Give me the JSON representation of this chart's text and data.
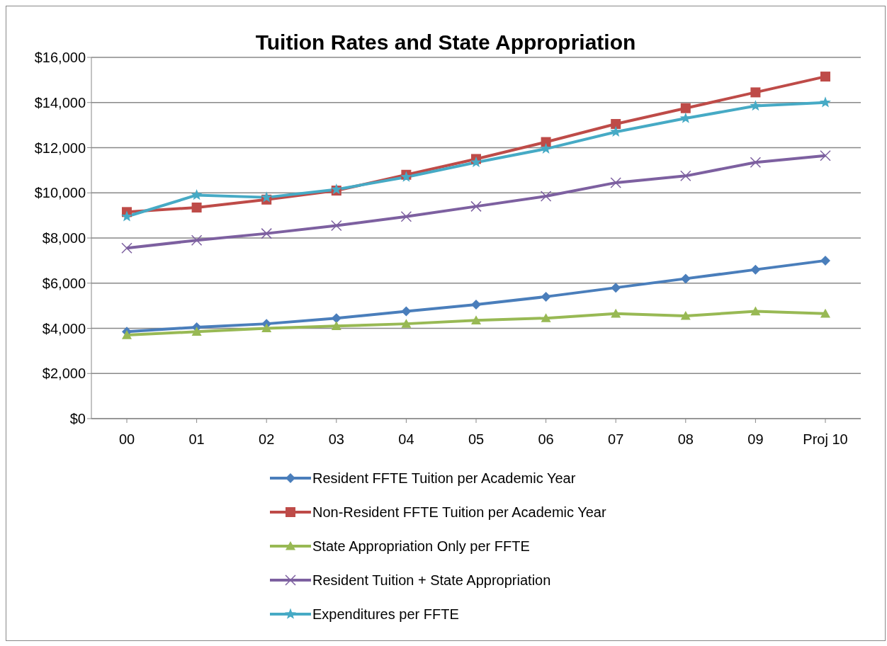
{
  "chart_data": {
    "type": "line",
    "title": "Tuition Rates and State Appropriation",
    "categories": [
      "00",
      "01",
      "02",
      "03",
      "04",
      "05",
      "06",
      "07",
      "08",
      "09",
      "Proj 10"
    ],
    "series": [
      {
        "name": "Resident FFTE Tuition per Academic Year",
        "color": "#4a7ebb",
        "marker": "diamond",
        "values": [
          3850,
          4050,
          4200,
          4450,
          4750,
          5050,
          5400,
          5800,
          6200,
          6600,
          7000
        ]
      },
      {
        "name": "Non-Resident FFTE Tuition per Academic Year",
        "color": "#be4b48",
        "marker": "square",
        "values": [
          9150,
          9350,
          9700,
          10100,
          10800,
          11500,
          12250,
          13050,
          13750,
          14450,
          15150
        ]
      },
      {
        "name": "State Appropriation Only per FFTE",
        "color": "#98b954",
        "marker": "triangle",
        "values": [
          3700,
          3850,
          4000,
          4100,
          4200,
          4350,
          4450,
          4650,
          4550,
          4750,
          4650
        ]
      },
      {
        "name": "Resident Tuition + State Appropriation",
        "color": "#7d60a0",
        "marker": "cross",
        "values": [
          7550,
          7900,
          8200,
          8550,
          8950,
          9400,
          9850,
          10450,
          10750,
          11350,
          11650
        ]
      },
      {
        "name": "Expenditures per FFTE",
        "color": "#46aac5",
        "marker": "star",
        "values": [
          8950,
          9900,
          9800,
          10150,
          10700,
          11350,
          11950,
          12700,
          13300,
          13850,
          14000
        ]
      }
    ],
    "ylim": [
      0,
      16000
    ],
    "yticks": [
      {
        "value": 0,
        "label": "$0"
      },
      {
        "value": 2000,
        "label": "$2,000"
      },
      {
        "value": 4000,
        "label": "$4,000"
      },
      {
        "value": 6000,
        "label": "$6,000"
      },
      {
        "value": 8000,
        "label": "$8,000"
      },
      {
        "value": 10000,
        "label": "$10,000"
      },
      {
        "value": 12000,
        "label": "$12,000"
      },
      {
        "value": 14000,
        "label": "$14,000"
      },
      {
        "value": 16000,
        "label": "$16,000"
      }
    ],
    "grid": "y",
    "legend": "bottom",
    "line_style": "solid"
  }
}
